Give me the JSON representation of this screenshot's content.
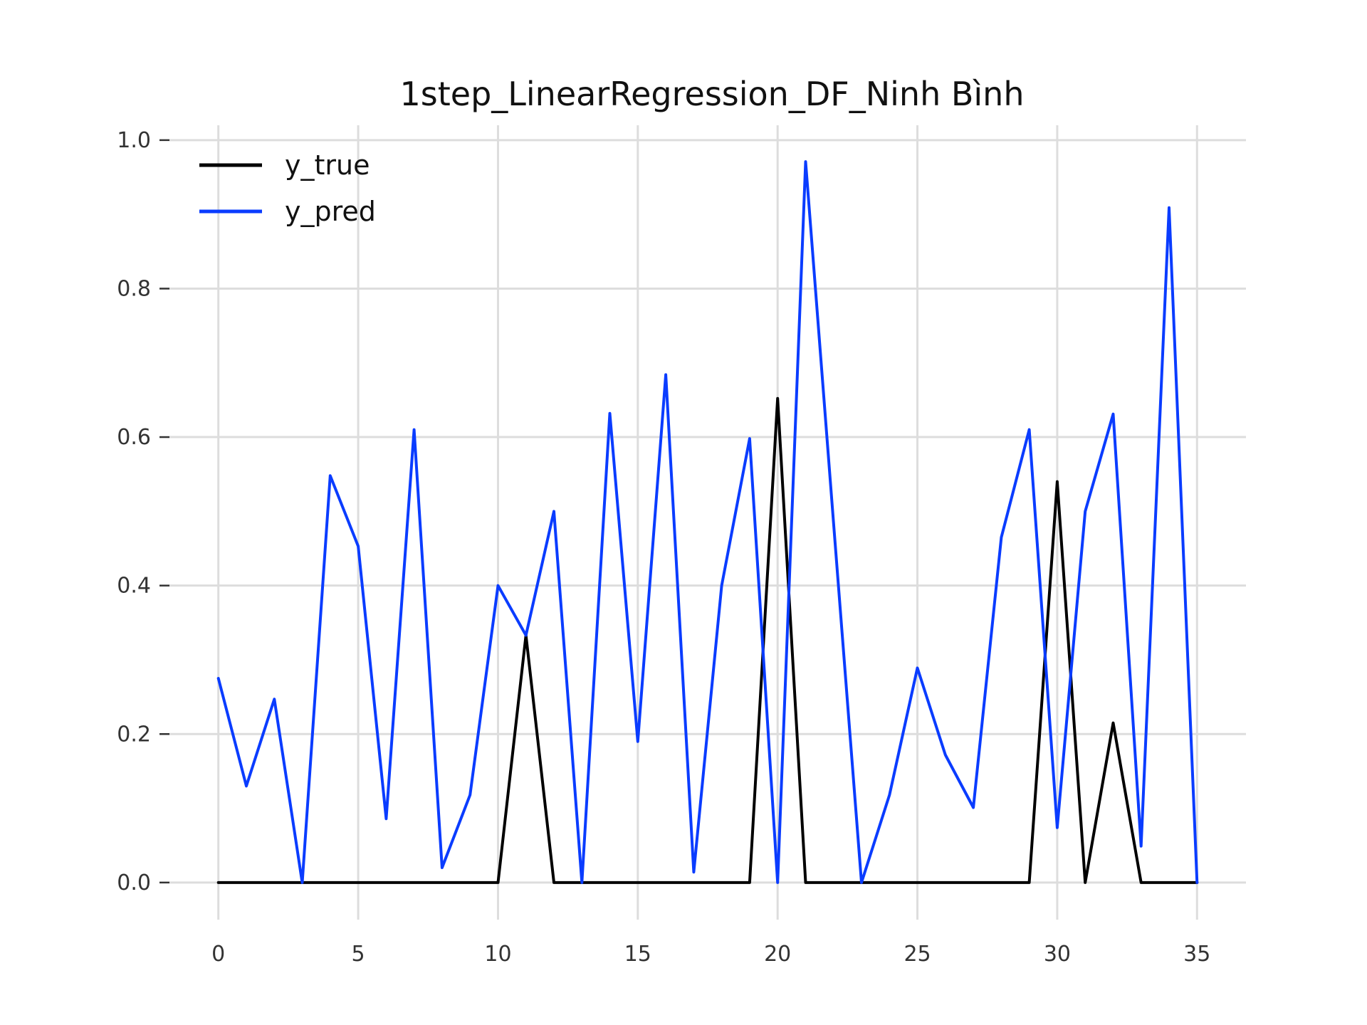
{
  "chart_data": {
    "type": "line",
    "title": "1step_LinearRegression_DF_Ninh Bình",
    "xlabel": "",
    "ylabel": "",
    "xlim": [
      -1.75,
      36.75
    ],
    "ylim": [
      -0.05,
      1.02
    ],
    "xticks": [
      0,
      5,
      10,
      15,
      20,
      25,
      30,
      35
    ],
    "xtick_labels": [
      "0",
      "5",
      "10",
      "15",
      "20",
      "25",
      "30",
      "35"
    ],
    "yticks": [
      0.0,
      0.2,
      0.4,
      0.6,
      0.8,
      1.0
    ],
    "ytick_labels": [
      "0.0",
      "0.2",
      "0.4",
      "0.6",
      "0.8",
      "1.0"
    ],
    "grid": true,
    "legend": "top-left",
    "x": [
      0,
      1,
      2,
      3,
      4,
      5,
      6,
      7,
      8,
      9,
      10,
      11,
      12,
      13,
      14,
      15,
      16,
      17,
      18,
      19,
      20,
      21,
      22,
      23,
      24,
      25,
      26,
      27,
      28,
      29,
      30,
      31,
      32,
      33,
      34,
      35
    ],
    "series": [
      {
        "name": "y_true",
        "color": "#000000",
        "values": [
          0,
          0,
          0,
          0,
          0,
          0,
          0,
          0,
          0,
          0,
          0,
          0.333,
          0,
          0,
          0,
          0,
          0,
          0,
          0,
          0,
          0.652,
          0,
          0,
          0,
          0,
          0,
          0,
          0,
          0,
          0,
          0.54,
          0,
          0.215,
          0,
          0,
          0
        ]
      },
      {
        "name": "y_pred",
        "color": "#0a3cff",
        "values": [
          0.275,
          0.13,
          0.247,
          0,
          0.548,
          0.453,
          0.086,
          0.61,
          0.02,
          0.118,
          0.4,
          0.333,
          0.5,
          0,
          0.632,
          0.19,
          0.684,
          0.014,
          0.4,
          0.598,
          0,
          0.971,
          0.485,
          0,
          0.118,
          0.289,
          0.172,
          0.101,
          0.465,
          0.61,
          0.074,
          0.5,
          0.631,
          0.049,
          0.909,
          0
        ]
      }
    ]
  }
}
